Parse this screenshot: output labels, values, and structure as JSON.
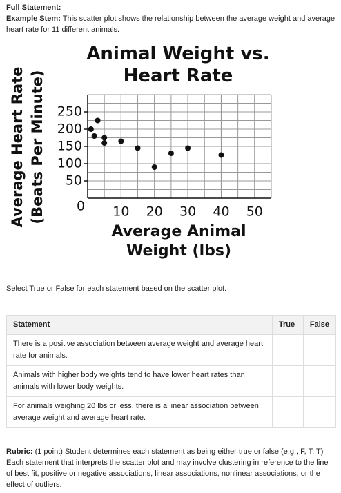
{
  "header": {
    "label": "Full Statement:",
    "stem_label": "Example Stem:",
    "stem_text": "This scatter plot shows the relationship between the average weight and average heart rate for 11 different animals."
  },
  "chart_data": {
    "type": "scatter",
    "title": "Animal Weight vs. Heart Rate",
    "x_label": "Average Animal Weight (lbs)",
    "y_label": "Average Heart Rate (Beats Per Minute)",
    "x": [
      1,
      2,
      3,
      5,
      5,
      10,
      15,
      20,
      25,
      30,
      40
    ],
    "values": [
      200,
      180,
      225,
      175,
      160,
      165,
      145,
      90,
      130,
      145,
      125
    ],
    "color": "#111111",
    "xlim": [
      0,
      55
    ],
    "ylim": [
      0,
      300
    ],
    "xticks": [
      0,
      10,
      20,
      30,
      40,
      50
    ],
    "yticks": [
      50,
      100,
      150,
      200,
      250
    ],
    "grid": true
  },
  "instruction": "Select True or False for each statement based on the scatter plot.",
  "table": {
    "columns": [
      "Statement",
      "True",
      "False"
    ],
    "rows": [
      "There is a positive association between average weight and average heart rate for animals.",
      "Animals with higher body weights tend to have lower heart rates than animals with lower body weights.",
      "For animals weighing 20 lbs or less, there is a linear association between average weight and average heart rate."
    ]
  },
  "rubric": {
    "label": "Rubric:",
    "text": "(1 point) Student determines each statement as being either true or false (e.g., F, T, T) Each statement that interprets the scatter plot and may involve clustering in reference to the line of best fit, positive or negative associations, linear associations, nonlinear associations, or the effect of outliers."
  }
}
